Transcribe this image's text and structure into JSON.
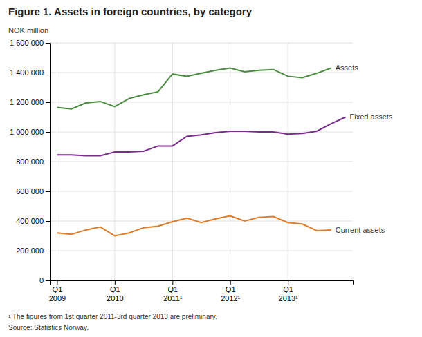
{
  "chart_data": {
    "type": "line",
    "title": "Figure 1. Assets in foreign countries, by category",
    "y_label": "NOK million",
    "footnote": "¹ The figures from 1st quarter 2011-3rd quarter 2013 are preliminary.",
    "source": "Source: Statistics Norway.",
    "grid": true,
    "categories": [
      "Q1\n2009",
      null,
      null,
      null,
      "Q1\n2010",
      null,
      null,
      null,
      "Q1\n2011¹",
      null,
      null,
      null,
      "Q1\n2012¹",
      null,
      null,
      null,
      "Q1\n2013¹",
      null,
      null,
      null,
      null
    ],
    "ylim": [
      0,
      1600000
    ],
    "yticks": [
      0,
      {
        "value": 200000,
        "label": "200 000"
      },
      {
        "value": 400000,
        "label": "400 000"
      },
      {
        "value": 600000,
        "label": "600 000"
      },
      {
        "value": 800000,
        "label": "800 000"
      },
      {
        "value": 1000000,
        "label": "1 000 000"
      },
      {
        "value": 1200000,
        "label": "1 200 000"
      },
      {
        "value": 1400000,
        "label": "1 400 000"
      },
      {
        "value": 1600000,
        "label": "1 600 000"
      }
    ],
    "series": [
      {
        "name": "Assets",
        "color": "#4a8c3f",
        "values": [
          1165000,
          1155000,
          1195000,
          1205000,
          1170000,
          1225000,
          1250000,
          1270000,
          1390000,
          1375000,
          1395000,
          1415000,
          1430000,
          1405000,
          1415000,
          1420000,
          1375000,
          1365000,
          1395000,
          1430000,
          null
        ]
      },
      {
        "name": "Fixed assets",
        "color": "#7b2d8b",
        "values": [
          845000,
          845000,
          840000,
          840000,
          865000,
          865000,
          870000,
          905000,
          905000,
          970000,
          980000,
          995000,
          1005000,
          1005000,
          1000000,
          1000000,
          985000,
          990000,
          1005000,
          1055000,
          1100000
        ]
      },
      {
        "name": "Current assets",
        "color": "#e07b28",
        "values": [
          320000,
          310000,
          340000,
          360000,
          300000,
          320000,
          355000,
          365000,
          395000,
          420000,
          390000,
          415000,
          435000,
          400000,
          425000,
          430000,
          390000,
          380000,
          335000,
          340000,
          null
        ]
      }
    ]
  }
}
